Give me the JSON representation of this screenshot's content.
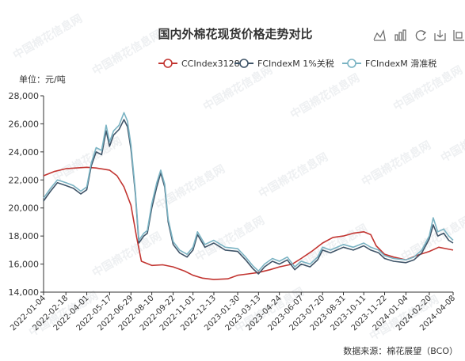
{
  "chart_data": {
    "type": "line",
    "title": "国内外棉花现货价格走势对比",
    "unit_label": "单位：元/吨",
    "source": "数据来源：棉花展望（BCO）",
    "watermark": "中国棉花信息网",
    "toolbox": [
      "line-chart-icon",
      "bar-chart-icon",
      "restore-icon",
      "save-image-icon",
      "data-zoom-icon"
    ],
    "ylim": [
      14000,
      28000
    ],
    "yticks": [
      14000,
      16000,
      18000,
      20000,
      22000,
      24000,
      26000,
      28000
    ],
    "ytick_labels": [
      "14,000",
      "16,000",
      "18,000",
      "20,000",
      "22,000",
      "24,000",
      "26,000",
      "28,000"
    ],
    "xlim": [
      "2022-01-04",
      "2024-04-08"
    ],
    "xticks": [
      "2022-01-04",
      "2022-02-18",
      "2022-04-01",
      "2022-05-17",
      "2022-06-29",
      "2022-08-10",
      "2022-09-22",
      "2022-11-01",
      "2022-12-13",
      "2023-01-30",
      "2023-03-13",
      "2023-04-24",
      "2023-06-07",
      "2023-07-20",
      "2023-08-31",
      "2023-10-11",
      "2023-11-22",
      "2024-01-04",
      "2024-02-20",
      "2024-04-08"
    ],
    "legend_position": "top-right",
    "grid": false,
    "series": [
      {
        "name": "CCIndex3128",
        "color": "#c23531",
        "points": [
          [
            "2022-01-04",
            22300
          ],
          [
            "2022-01-25",
            22600
          ],
          [
            "2022-02-18",
            22800
          ],
          [
            "2022-03-10",
            22850
          ],
          [
            "2022-04-01",
            22900
          ],
          [
            "2022-04-20",
            22850
          ],
          [
            "2022-05-17",
            22700
          ],
          [
            "2022-06-01",
            22300
          ],
          [
            "2022-06-15",
            21500
          ],
          [
            "2022-06-29",
            20200
          ],
          [
            "2022-07-10",
            18000
          ],
          [
            "2022-07-20",
            16200
          ],
          [
            "2022-08-10",
            15900
          ],
          [
            "2022-09-01",
            15950
          ],
          [
            "2022-09-22",
            15800
          ],
          [
            "2022-10-15",
            15500
          ],
          [
            "2022-11-01",
            15200
          ],
          [
            "2022-11-20",
            15000
          ],
          [
            "2022-12-13",
            14900
          ],
          [
            "2023-01-10",
            14950
          ],
          [
            "2023-01-30",
            15200
          ],
          [
            "2023-02-20",
            15300
          ],
          [
            "2023-03-13",
            15400
          ],
          [
            "2023-04-05",
            15600
          ],
          [
            "2023-04-24",
            15800
          ],
          [
            "2023-05-20",
            16000
          ],
          [
            "2023-06-07",
            16400
          ],
          [
            "2023-06-28",
            16900
          ],
          [
            "2023-07-20",
            17500
          ],
          [
            "2023-08-10",
            17900
          ],
          [
            "2023-08-31",
            18000
          ],
          [
            "2023-09-20",
            18200
          ],
          [
            "2023-10-11",
            18300
          ],
          [
            "2023-10-25",
            18100
          ],
          [
            "2023-11-05",
            17300
          ],
          [
            "2023-11-22",
            16700
          ],
          [
            "2023-12-10",
            16500
          ],
          [
            "2024-01-04",
            16300
          ],
          [
            "2024-01-25",
            16600
          ],
          [
            "2024-02-20",
            16900
          ],
          [
            "2024-03-10",
            17200
          ],
          [
            "2024-03-25",
            17100
          ],
          [
            "2024-04-08",
            17000
          ]
        ]
      },
      {
        "name": "FCIndexM 1%关税",
        "color": "#3f5468",
        "points": [
          [
            "2022-01-04",
            20500
          ],
          [
            "2022-01-18",
            21200
          ],
          [
            "2022-02-01",
            21800
          ],
          [
            "2022-02-18",
            21600
          ],
          [
            "2022-03-05",
            21400
          ],
          [
            "2022-03-20",
            21000
          ],
          [
            "2022-04-01",
            21300
          ],
          [
            "2022-04-10",
            23000
          ],
          [
            "2022-04-20",
            24000
          ],
          [
            "2022-05-01",
            23800
          ],
          [
            "2022-05-10",
            25500
          ],
          [
            "2022-05-17",
            24400
          ],
          [
            "2022-05-25",
            25200
          ],
          [
            "2022-06-05",
            25600
          ],
          [
            "2022-06-15",
            26300
          ],
          [
            "2022-06-22",
            25800
          ],
          [
            "2022-06-29",
            24200
          ],
          [
            "2022-07-08",
            21000
          ],
          [
            "2022-07-15",
            17500
          ],
          [
            "2022-07-25",
            18000
          ],
          [
            "2022-08-01",
            18200
          ],
          [
            "2022-08-10",
            20000
          ],
          [
            "2022-08-20",
            21500
          ],
          [
            "2022-08-28",
            22500
          ],
          [
            "2022-09-05",
            21500
          ],
          [
            "2022-09-12",
            19000
          ],
          [
            "2022-09-22",
            17400
          ],
          [
            "2022-10-05",
            16800
          ],
          [
            "2022-10-20",
            16500
          ],
          [
            "2022-11-01",
            17000
          ],
          [
            "2022-11-10",
            18100
          ],
          [
            "2022-11-25",
            17200
          ],
          [
            "2022-12-13",
            17500
          ],
          [
            "2023-01-05",
            17000
          ],
          [
            "2023-01-30",
            16900
          ],
          [
            "2023-02-15",
            16300
          ],
          [
            "2023-03-01",
            15700
          ],
          [
            "2023-03-13",
            15300
          ],
          [
            "2023-03-25",
            15800
          ],
          [
            "2023-04-10",
            16200
          ],
          [
            "2023-04-24",
            16000
          ],
          [
            "2023-05-10",
            16300
          ],
          [
            "2023-05-25",
            15600
          ],
          [
            "2023-06-07",
            16000
          ],
          [
            "2023-06-25",
            15800
          ],
          [
            "2023-07-10",
            16300
          ],
          [
            "2023-07-20",
            17000
          ],
          [
            "2023-08-05",
            16800
          ],
          [
            "2023-08-31",
            17200
          ],
          [
            "2023-09-20",
            17000
          ],
          [
            "2023-10-11",
            17300
          ],
          [
            "2023-10-25",
            17000
          ],
          [
            "2023-11-10",
            16800
          ],
          [
            "2023-11-22",
            16400
          ],
          [
            "2023-12-10",
            16200
          ],
          [
            "2024-01-04",
            16100
          ],
          [
            "2024-01-20",
            16300
          ],
          [
            "2024-02-05",
            16800
          ],
          [
            "2024-02-20",
            17800
          ],
          [
            "2024-02-28",
            18800
          ],
          [
            "2024-03-08",
            18000
          ],
          [
            "2024-03-20",
            18200
          ],
          [
            "2024-03-30",
            17700
          ],
          [
            "2024-04-08",
            17500
          ]
        ]
      },
      {
        "name": "FCIndexM 滑准税",
        "color": "#7ab3c3",
        "points": [
          [
            "2022-01-04",
            20700
          ],
          [
            "2022-01-18",
            21400
          ],
          [
            "2022-02-01",
            22000
          ],
          [
            "2022-02-18",
            21800
          ],
          [
            "2022-03-05",
            21600
          ],
          [
            "2022-03-20",
            21200
          ],
          [
            "2022-04-01",
            21500
          ],
          [
            "2022-04-10",
            23200
          ],
          [
            "2022-04-20",
            24300
          ],
          [
            "2022-05-01",
            24100
          ],
          [
            "2022-05-10",
            25900
          ],
          [
            "2022-05-17",
            24700
          ],
          [
            "2022-05-25",
            25500
          ],
          [
            "2022-06-05",
            25900
          ],
          [
            "2022-06-15",
            26800
          ],
          [
            "2022-06-22",
            26200
          ],
          [
            "2022-06-29",
            24500
          ],
          [
            "2022-07-08",
            21200
          ],
          [
            "2022-07-15",
            17700
          ],
          [
            "2022-07-25",
            18200
          ],
          [
            "2022-08-01",
            18400
          ],
          [
            "2022-08-10",
            20300
          ],
          [
            "2022-08-20",
            21800
          ],
          [
            "2022-08-28",
            22700
          ],
          [
            "2022-09-05",
            21700
          ],
          [
            "2022-09-12",
            19200
          ],
          [
            "2022-09-22",
            17600
          ],
          [
            "2022-10-05",
            17000
          ],
          [
            "2022-10-20",
            16700
          ],
          [
            "2022-11-01",
            17200
          ],
          [
            "2022-11-10",
            18300
          ],
          [
            "2022-11-25",
            17400
          ],
          [
            "2022-12-13",
            17700
          ],
          [
            "2023-01-05",
            17200
          ],
          [
            "2023-01-30",
            17100
          ],
          [
            "2023-02-15",
            16500
          ],
          [
            "2023-03-01",
            15900
          ],
          [
            "2023-03-13",
            15500
          ],
          [
            "2023-03-25",
            16000
          ],
          [
            "2023-04-10",
            16400
          ],
          [
            "2023-04-24",
            16200
          ],
          [
            "2023-05-10",
            16500
          ],
          [
            "2023-05-25",
            15800
          ],
          [
            "2023-06-07",
            16200
          ],
          [
            "2023-06-25",
            16000
          ],
          [
            "2023-07-10",
            16500
          ],
          [
            "2023-07-20",
            17200
          ],
          [
            "2023-08-05",
            17000
          ],
          [
            "2023-08-31",
            17400
          ],
          [
            "2023-09-20",
            17200
          ],
          [
            "2023-10-11",
            17500
          ],
          [
            "2023-10-25",
            17200
          ],
          [
            "2023-11-10",
            17000
          ],
          [
            "2023-11-22",
            16600
          ],
          [
            "2023-12-10",
            16400
          ],
          [
            "2024-01-04",
            16300
          ],
          [
            "2024-01-20",
            16500
          ],
          [
            "2024-02-05",
            17000
          ],
          [
            "2024-02-20",
            18000
          ],
          [
            "2024-02-28",
            19300
          ],
          [
            "2024-03-08",
            18300
          ],
          [
            "2024-03-20",
            18500
          ],
          [
            "2024-03-30",
            18000
          ],
          [
            "2024-04-08",
            17700
          ]
        ]
      }
    ]
  }
}
